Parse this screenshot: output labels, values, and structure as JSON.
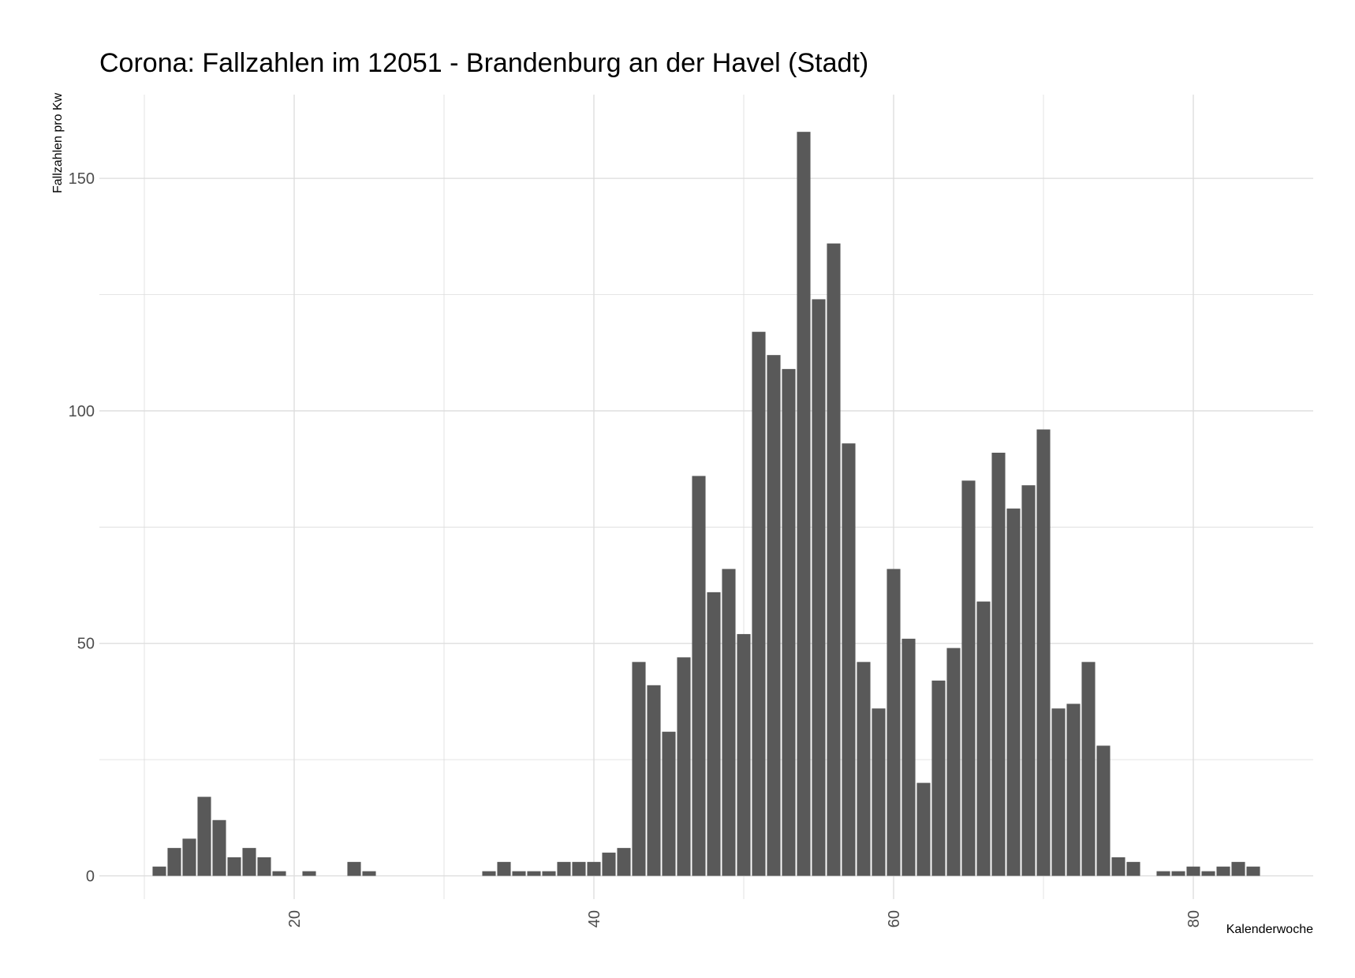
{
  "chart_data": {
    "type": "bar",
    "title": "Corona: Fallzahlen im 12051 - Brandenburg an der Havel (Stadt)",
    "xlabel": "Kalenderwoche",
    "ylabel": "Fallzahlen pro Kw",
    "xlim": [
      7,
      88
    ],
    "ylim": [
      -5,
      168
    ],
    "x_ticks": [
      "20",
      "40",
      "60",
      "80"
    ],
    "y_ticks": [
      "0",
      "50",
      "100",
      "150"
    ],
    "grid": true,
    "bar_color": "#595959",
    "grid_color": "#dcdcdc",
    "x": [
      11,
      12,
      13,
      14,
      15,
      16,
      17,
      18,
      19,
      21,
      24,
      25,
      33,
      34,
      35,
      36,
      37,
      38,
      39,
      40,
      41,
      42,
      43,
      44,
      45,
      46,
      47,
      48,
      49,
      50,
      51,
      52,
      53,
      54,
      55,
      56,
      57,
      58,
      59,
      60,
      61,
      62,
      63,
      64,
      65,
      66,
      67,
      68,
      69,
      70,
      71,
      72,
      73,
      74,
      75,
      76,
      78,
      79,
      80,
      81,
      82,
      83,
      84
    ],
    "values": [
      2,
      6,
      8,
      17,
      12,
      4,
      6,
      4,
      1,
      1,
      3,
      1,
      1,
      3,
      1,
      1,
      1,
      3,
      3,
      3,
      5,
      6,
      46,
      41,
      31,
      47,
      86,
      61,
      66,
      52,
      117,
      112,
      109,
      160,
      124,
      136,
      93,
      46,
      36,
      66,
      51,
      20,
      42,
      49,
      85,
      59,
      91,
      79,
      84,
      96,
      36,
      37,
      46,
      28,
      4,
      3,
      1,
      1,
      2,
      1,
      2,
      3,
      2
    ]
  }
}
